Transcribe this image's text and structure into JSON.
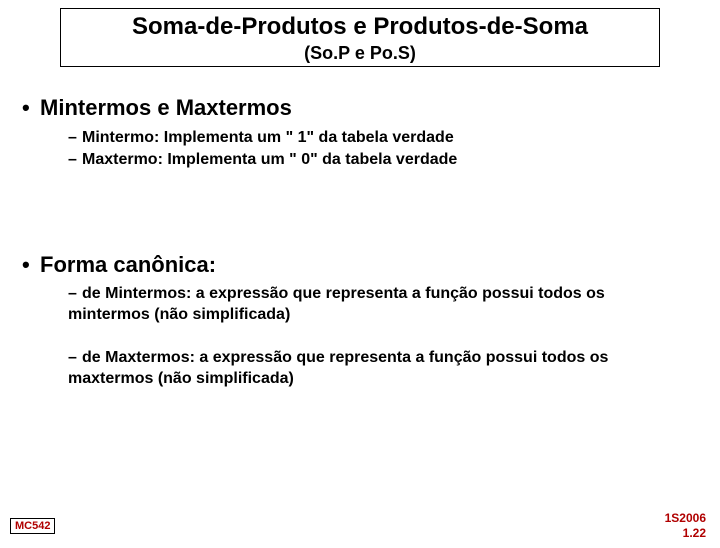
{
  "title": {
    "main": "Soma-de-Produtos e Produtos-de-Soma",
    "sub": "(So.P e Po.S)"
  },
  "section1": {
    "heading": "Mintermos e Maxtermos",
    "items": [
      "Mintermo:  Implementa um  \" 1\" da tabela verdade",
      "Maxtermo: Implementa um  \" 0\" da tabela verdade"
    ]
  },
  "section2": {
    "heading": "Forma canônica:",
    "items": [
      "de Mintermos: a expressão que representa a função possui todos os mintermos  (não simplificada)",
      "de Maxtermos: a expressão que representa a função possui todos os maxtermos (não simplificada)"
    ]
  },
  "footer": {
    "left": "MC542",
    "right_top": "1S2006",
    "right_bottom": "1.22"
  },
  "colors": {
    "accent": "#b00000",
    "text": "#000000",
    "background": "#ffffff"
  }
}
